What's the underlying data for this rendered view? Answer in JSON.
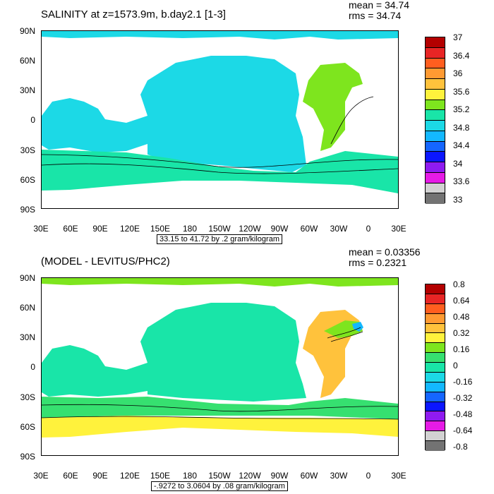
{
  "panel1": {
    "title": "SALINITY at z=1573.9m, b.day2.1 [1-3]",
    "mean": "mean = 34.74",
    "rms": "rms = 34.74",
    "units": "33.15 to 41.72 by .2 gram/kilogram",
    "colorbar_labels": [
      "37",
      "36.4",
      "36",
      "35.6",
      "35.2",
      "34.8",
      "34.4",
      "34",
      "33.6",
      "33"
    ],
    "colorbar_colors": [
      "#b30000",
      "#e82525",
      "#ff5e1f",
      "#ff9a32",
      "#ffc23c",
      "#fff23c",
      "#7ee51e",
      "#19e5a8",
      "#1cd9e6",
      "#13b8ff",
      "#1566ff",
      "#0b16ff",
      "#8f1bf0",
      "#e61be6",
      "#d2d2d2",
      "#737373"
    ]
  },
  "panel2": {
    "title": "(MODEL - LEVITUS/PHC2)",
    "mean": "mean = 0.03356",
    "rms": "rms = 0.2321",
    "units": "-.9272 to 3.0604 by .08 gram/kilogram",
    "colorbar_labels": [
      "0.8",
      "0.64",
      "0.48",
      "0.32",
      "0.16",
      "0",
      "-0.16",
      "-0.32",
      "-0.48",
      "-0.64",
      "-0.8"
    ],
    "colorbar_colors": [
      "#b30000",
      "#e82525",
      "#ff5e1f",
      "#ff9a32",
      "#ffc23c",
      "#fff23c",
      "#7ee51e",
      "#36e070",
      "#19e5a8",
      "#1cd9e6",
      "#13b8ff",
      "#1566ff",
      "#0b16ff",
      "#8f1bf0",
      "#e61be6",
      "#d2d2d2",
      "#737373"
    ]
  },
  "axes": {
    "lat_labels": [
      "90N",
      "60N",
      "30N",
      "0",
      "30S",
      "60S",
      "90S"
    ],
    "lon_labels": [
      "30E",
      "60E",
      "90E",
      "120E",
      "150E",
      "180",
      "150W",
      "120W",
      "90W",
      "60W",
      "30W",
      "0",
      "30E"
    ]
  },
  "colors": {
    "ocean_fill_1": "#1cd9e6",
    "ocean_fill_2": "#19e5a8",
    "atlantic_fill_1": "#7ee51e",
    "southern_fill": "#fff23c",
    "anomaly_orange": "#ffc23c"
  }
}
